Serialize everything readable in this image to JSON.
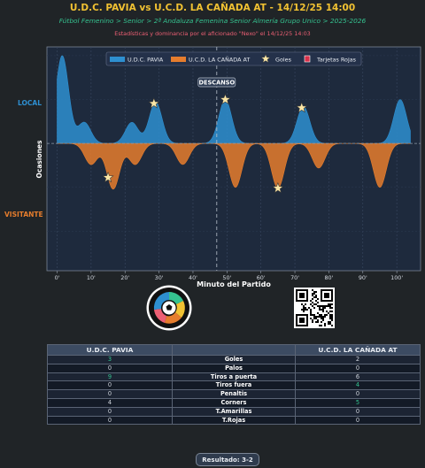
{
  "header": {
    "title": "U.D.C. PAVIA vs U.C.D. LA CAÑADA AT - 14/12/25 14:00",
    "subtitle": "Fútbol Femenino > Senior > 2ª Andaluza Femenina Senior Almería Grupo Unico > 2025-2026",
    "stats_line": "Estadísticas y dominancia por el aficionado \"Nexo\" el 14/12/25 14:03"
  },
  "sides": {
    "local": "LOCAL",
    "visitante": "VISITANTE"
  },
  "colors": {
    "home": "#2e8fd0",
    "away": "#e67d2d",
    "accent": "#f1c232",
    "plot_bg": "#1e2a3d",
    "red_card": "#d9304a"
  },
  "chart_data": {
    "type": "area",
    "xlabel": "Minuto del Partido",
    "ylabel": "Ocasiones",
    "xlim": [
      -3,
      107
    ],
    "ylim": [
      -1.45,
      1.1
    ],
    "x_ticks": [
      0,
      10,
      20,
      30,
      40,
      50,
      60,
      70,
      80,
      90,
      100
    ],
    "x_tick_labels": [
      "0'",
      "10'",
      "20'",
      "30'",
      "40'",
      "50'",
      "60'",
      "70'",
      "80'",
      "90'",
      "100'"
    ],
    "grid": true,
    "legend_position": "top-center",
    "legend": [
      "U.D.C. PAVIA",
      "U.C.D. LA CAÑADA AT",
      "Goles",
      "Tarjetas Rojas"
    ],
    "halftime": {
      "minute": 47,
      "label": "DESCANSO"
    },
    "series": [
      {
        "name": "U.D.C. PAVIA",
        "side": "home",
        "peaks": [
          {
            "minute": 1.5,
            "intensity": 1.0
          },
          {
            "minute": 8,
            "intensity": 0.24
          },
          {
            "minute": 22,
            "intensity": 0.24
          },
          {
            "minute": 29,
            "intensity": 0.47
          },
          {
            "minute": 49.5,
            "intensity": 0.5
          },
          {
            "minute": 72.5,
            "intensity": 0.42
          },
          {
            "minute": 101,
            "intensity": 0.5
          }
        ]
      },
      {
        "name": "U.C.D. LA CAÑADA AT",
        "side": "away",
        "peaks": [
          {
            "minute": 10,
            "intensity": 0.24
          },
          {
            "minute": 16.5,
            "intensity": 0.52
          },
          {
            "minute": 23,
            "intensity": 0.24
          },
          {
            "minute": 37,
            "intensity": 0.24
          },
          {
            "minute": 52.5,
            "intensity": 0.5
          },
          {
            "minute": 65,
            "intensity": 0.51
          },
          {
            "minute": 77,
            "intensity": 0.28
          },
          {
            "minute": 95,
            "intensity": 0.5
          }
        ]
      }
    ],
    "goals": [
      {
        "minute": 28.5,
        "team": "home"
      },
      {
        "minute": 49.5,
        "team": "home"
      },
      {
        "minute": 72,
        "team": "home"
      },
      {
        "minute": 15,
        "team": "away"
      },
      {
        "minute": 65,
        "team": "away"
      }
    ],
    "red_cards": []
  },
  "stats_table": {
    "home_team": "U.D.C. PAVIA",
    "away_team": "U.C.D. LA CAÑADA AT",
    "rows": [
      {
        "label": "Goles",
        "home": "3",
        "away": "2",
        "home_hi": true,
        "away_hi": false
      },
      {
        "label": "Palos",
        "home": "0",
        "away": "0",
        "home_hi": false,
        "away_hi": false
      },
      {
        "label": "Tiros a puerta",
        "home": "9",
        "away": "6",
        "home_hi": true,
        "away_hi": false
      },
      {
        "label": "Tiros fuera",
        "home": "0",
        "away": "4",
        "home_hi": false,
        "away_hi": true
      },
      {
        "label": "Penaltis",
        "home": "0",
        "away": "0",
        "home_hi": false,
        "away_hi": false
      },
      {
        "label": "Corners",
        "home": "4",
        "away": "5",
        "home_hi": false,
        "away_hi": true
      },
      {
        "label": "T.Amarillas",
        "home": "0",
        "away": "0",
        "home_hi": false,
        "away_hi": false
      },
      {
        "label": "T.Rojas",
        "home": "0",
        "away": "0",
        "home_hi": false,
        "away_hi": false
      }
    ]
  },
  "footer": {
    "result": "Resultado: 3-2"
  },
  "icons": {
    "logo": "club-crest-icon",
    "qr": "qr-code-icon"
  }
}
